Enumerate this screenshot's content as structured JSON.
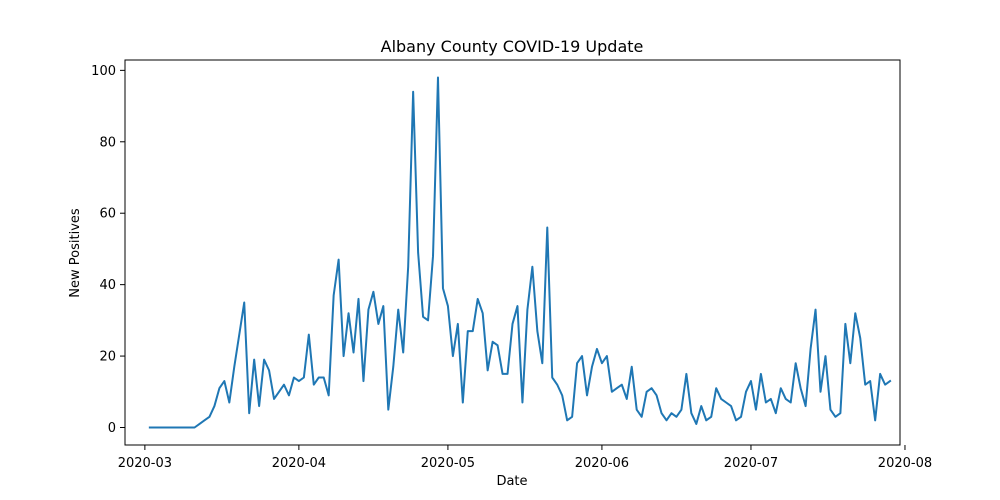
{
  "chart_data": {
    "type": "line",
    "title": "Albany County COVID-19 Update",
    "xlabel": "Date",
    "ylabel": "New Positives",
    "grid": false,
    "legend": "none",
    "xlim": [
      "2020-02-26",
      "2020-07-31"
    ],
    "ylim": [
      -4.9,
      102.9
    ],
    "yticks": [
      0,
      20,
      40,
      60,
      80,
      100
    ],
    "xticks": [
      "2020-03",
      "2020-04",
      "2020-05",
      "2020-06",
      "2020-07",
      "2020-08"
    ],
    "xtick_dates": [
      "2020-03-01",
      "2020-04-01",
      "2020-05-01",
      "2020-06-01",
      "2020-07-01",
      "2020-08-01"
    ],
    "line_color": "#1f77b4",
    "series": [
      {
        "name": "",
        "x": [
          "2020-03-02",
          "2020-03-03",
          "2020-03-04",
          "2020-03-05",
          "2020-03-06",
          "2020-03-07",
          "2020-03-08",
          "2020-03-09",
          "2020-03-10",
          "2020-03-11",
          "2020-03-12",
          "2020-03-13",
          "2020-03-14",
          "2020-03-15",
          "2020-03-16",
          "2020-03-17",
          "2020-03-18",
          "2020-03-19",
          "2020-03-20",
          "2020-03-21",
          "2020-03-22",
          "2020-03-23",
          "2020-03-24",
          "2020-03-25",
          "2020-03-26",
          "2020-03-27",
          "2020-03-28",
          "2020-03-29",
          "2020-03-30",
          "2020-03-31",
          "2020-04-01",
          "2020-04-02",
          "2020-04-03",
          "2020-04-04",
          "2020-04-05",
          "2020-04-06",
          "2020-04-07",
          "2020-04-08",
          "2020-04-09",
          "2020-04-10",
          "2020-04-11",
          "2020-04-12",
          "2020-04-13",
          "2020-04-14",
          "2020-04-15",
          "2020-04-16",
          "2020-04-17",
          "2020-04-18",
          "2020-04-19",
          "2020-04-20",
          "2020-04-21",
          "2020-04-22",
          "2020-04-23",
          "2020-04-24",
          "2020-04-25",
          "2020-04-26",
          "2020-04-27",
          "2020-04-28",
          "2020-04-29",
          "2020-04-30",
          "2020-05-01",
          "2020-05-02",
          "2020-05-03",
          "2020-05-04",
          "2020-05-05",
          "2020-05-06",
          "2020-05-07",
          "2020-05-08",
          "2020-05-09",
          "2020-05-10",
          "2020-05-11",
          "2020-05-12",
          "2020-05-13",
          "2020-05-14",
          "2020-05-15",
          "2020-05-16",
          "2020-05-17",
          "2020-05-18",
          "2020-05-19",
          "2020-05-20",
          "2020-05-21",
          "2020-05-22",
          "2020-05-23",
          "2020-05-24",
          "2020-05-25",
          "2020-05-26",
          "2020-05-27",
          "2020-05-28",
          "2020-05-29",
          "2020-05-30",
          "2020-05-31",
          "2020-06-01",
          "2020-06-02",
          "2020-06-03",
          "2020-06-04",
          "2020-06-05",
          "2020-06-06",
          "2020-06-07",
          "2020-06-08",
          "2020-06-09",
          "2020-06-10",
          "2020-06-11",
          "2020-06-12",
          "2020-06-13",
          "2020-06-14",
          "2020-06-15",
          "2020-06-16",
          "2020-06-17",
          "2020-06-18",
          "2020-06-19",
          "2020-06-20",
          "2020-06-21",
          "2020-06-22",
          "2020-06-23",
          "2020-06-24",
          "2020-06-25",
          "2020-06-26",
          "2020-06-27",
          "2020-06-28",
          "2020-06-29",
          "2020-06-30",
          "2020-07-01",
          "2020-07-02",
          "2020-07-03",
          "2020-07-04",
          "2020-07-05",
          "2020-07-06",
          "2020-07-07",
          "2020-07-08",
          "2020-07-09",
          "2020-07-10",
          "2020-07-11",
          "2020-07-12",
          "2020-07-13",
          "2020-07-14",
          "2020-07-15",
          "2020-07-16",
          "2020-07-17",
          "2020-07-18",
          "2020-07-19",
          "2020-07-20",
          "2020-07-21",
          "2020-07-22",
          "2020-07-23",
          "2020-07-24",
          "2020-07-25",
          "2020-07-26",
          "2020-07-27",
          "2020-07-28",
          "2020-07-29"
        ],
        "values": [
          0,
          0,
          0,
          0,
          0,
          0,
          0,
          0,
          0,
          0,
          1,
          2,
          3,
          6,
          11,
          13,
          7,
          17,
          26,
          35,
          4,
          19,
          6,
          19,
          16,
          8,
          10,
          12,
          9,
          14,
          13,
          14,
          26,
          12,
          14,
          14,
          9,
          37,
          47,
          20,
          32,
          21,
          36,
          13,
          33,
          38,
          29,
          34,
          5,
          17,
          33,
          21,
          45,
          94,
          49,
          31,
          30,
          48,
          98,
          39,
          34,
          20,
          29,
          7,
          27,
          27,
          36,
          32,
          16,
          24,
          23,
          15,
          15,
          29,
          34,
          7,
          33,
          45,
          27,
          18,
          56,
          14,
          12,
          9,
          2,
          3,
          18,
          20,
          9,
          17,
          22,
          18,
          20,
          10,
          11,
          12,
          8,
          17,
          5,
          3,
          10,
          11,
          9,
          4,
          2,
          4,
          3,
          5,
          15,
          4,
          1,
          6,
          2,
          3,
          11,
          8,
          7,
          6,
          2,
          3,
          10,
          13,
          5,
          15,
          7,
          8,
          4,
          11,
          8,
          7,
          18,
          11,
          6,
          22,
          33,
          10,
          20,
          5,
          3,
          4,
          29,
          18,
          32,
          25,
          12,
          13,
          2,
          15,
          12,
          13
        ]
      }
    ]
  }
}
